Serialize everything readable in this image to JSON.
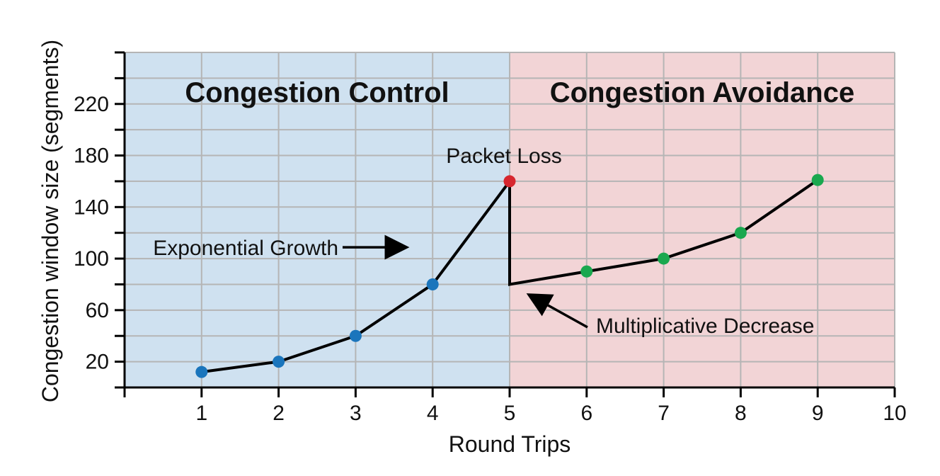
{
  "chart_data": {
    "type": "line",
    "xlabel": "Round Trips",
    "ylabel": "Congestion window size (segments)",
    "xlim": [
      0,
      10
    ],
    "ylim": [
      0,
      260
    ],
    "x_ticks": [
      1,
      2,
      3,
      4,
      5,
      6,
      7,
      8,
      9,
      10
    ],
    "y_ticks": [
      20,
      60,
      100,
      140,
      180,
      220
    ],
    "grid": true,
    "regions": [
      {
        "label": "Congestion Control",
        "x_range": [
          0,
          5
        ],
        "color": "#cfe1f0"
      },
      {
        "label": "Congestion Avoidance",
        "x_range": [
          5,
          10
        ],
        "color": "#f2d4d6"
      }
    ],
    "line_path": [
      [
        1,
        12
      ],
      [
        2,
        20
      ],
      [
        3,
        40
      ],
      [
        4,
        80
      ],
      [
        5,
        160
      ],
      [
        5,
        80
      ],
      [
        6,
        90
      ],
      [
        7,
        100
      ],
      [
        8,
        120
      ],
      [
        9,
        161
      ]
    ],
    "series": [
      {
        "points": [
          [
            1,
            12
          ],
          [
            2,
            20
          ],
          [
            3,
            40
          ],
          [
            4,
            80
          ]
        ],
        "color": "#1a75bc"
      },
      {
        "points": [
          [
            5,
            160
          ]
        ],
        "color": "#d7262e"
      },
      {
        "points": [
          [
            6,
            90
          ],
          [
            7,
            100
          ],
          [
            8,
            120
          ],
          [
            9,
            161
          ]
        ],
        "color": "#1aa84f"
      }
    ],
    "annotations": [
      {
        "text": "Packet Loss",
        "x": 5,
        "y": 160
      },
      {
        "text": "Exponential Growth",
        "x": 3.8,
        "y": 100,
        "arrow_to": [
          3.8,
          100
        ]
      },
      {
        "text": "Multiplicative Decrease",
        "x": 5.2,
        "y": 80,
        "arrow_to": [
          5.2,
          80
        ]
      }
    ]
  }
}
